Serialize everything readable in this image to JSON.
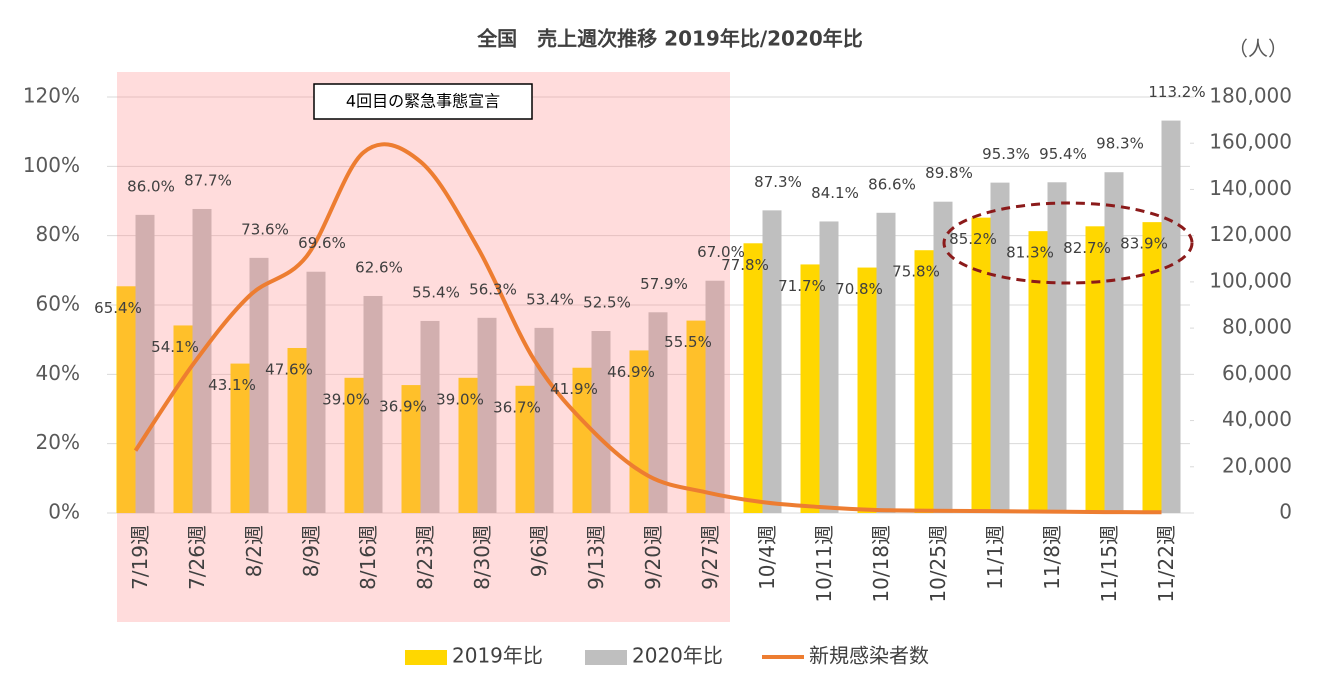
{
  "chart_data": {
    "type": "bar",
    "title": "全国　売上週次推移  2019年比/2020年比",
    "annotations": [
      "4回目の緊急事態宣言"
    ],
    "y2_unit": "（人）",
    "categories": [
      "7/19週",
      "7/26週",
      "8/2週",
      "8/9週",
      "8/16週",
      "8/23週",
      "8/30週",
      "9/6週",
      "9/13週",
      "9/20週",
      "9/27週",
      "10/4週",
      "10/11週",
      "10/18週",
      "10/25週",
      "11/1週",
      "11/8週",
      "11/15週",
      "11/22週"
    ],
    "series": [
      {
        "name": "2019年比",
        "type": "bar",
        "color": "#ffd700",
        "values": [
          65.4,
          54.1,
          43.1,
          47.6,
          39.0,
          36.9,
          39.0,
          36.7,
          41.9,
          46.9,
          55.5,
          77.8,
          71.7,
          70.8,
          75.8,
          85.2,
          81.3,
          82.7,
          83.9
        ],
        "value_labels": [
          "65.4%",
          "54.1%",
          "43.1%",
          "47.6%",
          "39.0%",
          "36.9%",
          "39.0%",
          "36.7%",
          "41.9%",
          "46.9%",
          "55.5%",
          "77.8%",
          "71.7%",
          "70.8%",
          "75.8%",
          "85.2%",
          "81.3%",
          "82.7%",
          "83.9%"
        ]
      },
      {
        "name": "2020年比",
        "type": "bar",
        "color": "#bfbfbf",
        "values": [
          86.0,
          87.7,
          73.6,
          69.6,
          62.6,
          55.4,
          56.3,
          53.4,
          52.5,
          57.9,
          67.0,
          87.3,
          84.1,
          86.6,
          89.8,
          95.3,
          95.4,
          98.3,
          113.2
        ],
        "value_labels": [
          "86.0%",
          "87.7%",
          "73.6%",
          "69.6%",
          "62.6%",
          "55.4%",
          "56.3%",
          "53.4%",
          "52.5%",
          "57.9%",
          "67.0%",
          "87.3%",
          "84.1%",
          "86.6%",
          "89.8%",
          "95.3%",
          "95.4%",
          "98.3%",
          "113.2%"
        ]
      },
      {
        "name": "新規感染者数",
        "type": "line",
        "axis": "y2",
        "color": "#ed7d31",
        "values": [
          27000,
          64000,
          94000,
          111000,
          156000,
          152000,
          115000,
          66000,
          36000,
          16000,
          9000,
          4700,
          2600,
          1300,
          1000,
          800,
          600,
          400,
          300
        ]
      }
    ],
    "ylim": [
      0,
      120
    ],
    "yticks": [
      {
        "value": 0,
        "label": "0%"
      },
      {
        "value": 20,
        "label": "20%"
      },
      {
        "value": 40,
        "label": "40%"
      },
      {
        "value": 60,
        "label": "60%"
      },
      {
        "value": 80,
        "label": "80%"
      },
      {
        "value": 100,
        "label": "100%"
      },
      {
        "value": 120,
        "label": "120%"
      }
    ],
    "y2lim": [
      0,
      180000
    ],
    "y2ticks": [
      0,
      {
        "value": 20000,
        "label": "20,000"
      },
      {
        "value": 40000,
        "label": "40,000"
      },
      {
        "value": 60000,
        "label": "60,000"
      },
      {
        "value": 80000,
        "label": "80,000"
      },
      {
        "value": 100000,
        "label": "100,000"
      },
      {
        "value": 120000,
        "label": "120,000"
      },
      {
        "value": 140000,
        "label": "140,000"
      },
      {
        "value": 160000,
        "label": "160,000"
      },
      {
        "value": 180000,
        "label": "180,000"
      }
    ],
    "grid": true
  }
}
